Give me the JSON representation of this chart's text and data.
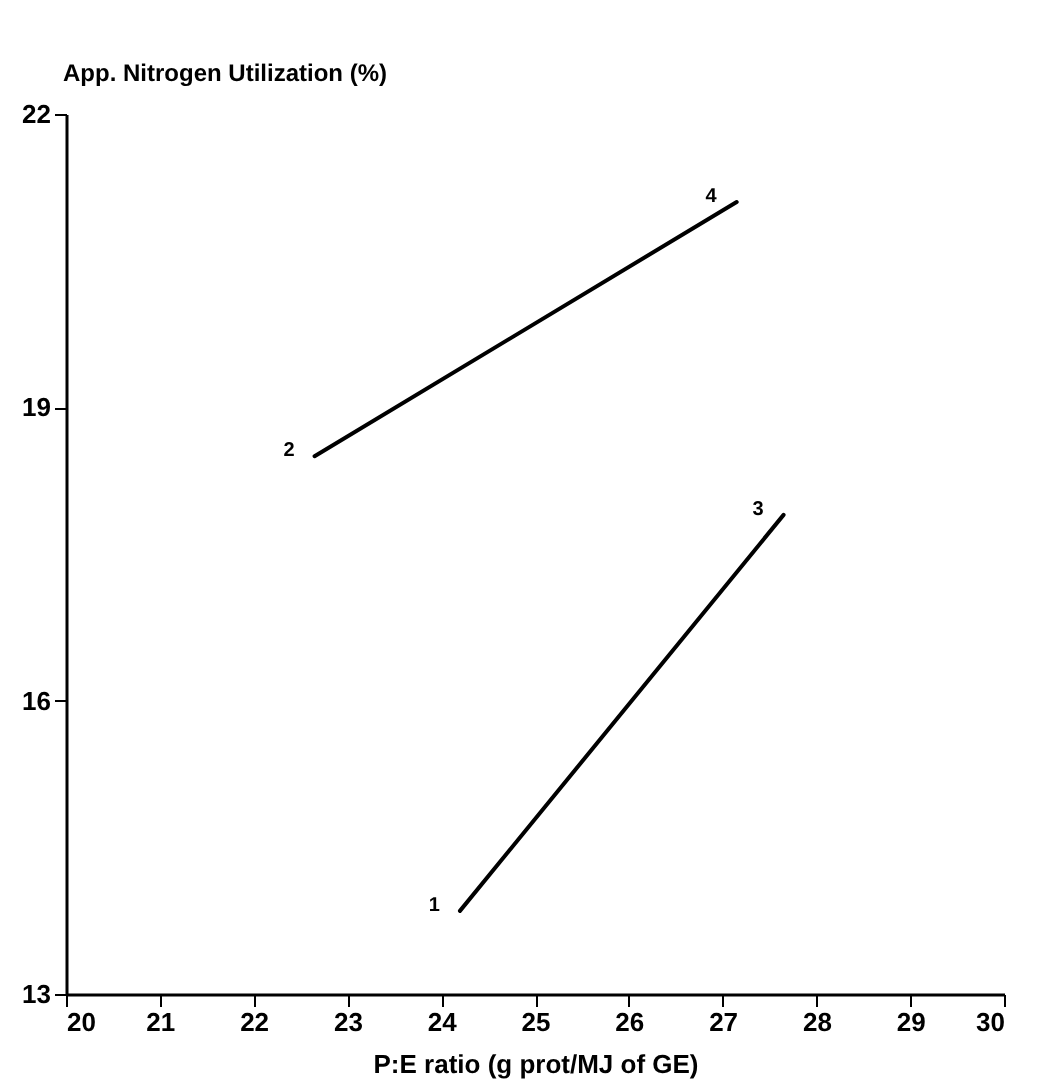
{
  "chart_data": {
    "type": "line",
    "ylabel": "App. Nitrogen Utilization (%)",
    "xlabel": "P:E ratio (g prot/MJ of GE)",
    "series": [
      {
        "color": "#000000",
        "x": [
          22.65,
          27.15
        ],
        "values": [
          18.5,
          21.1
        ]
      },
      {
        "color": "#000000",
        "x": [
          24.2,
          27.65
        ],
        "values": [
          13.85,
          17.9
        ]
      }
    ],
    "xlim": [
      20,
      30
    ],
    "xticks": [
      20,
      21,
      22,
      23,
      24,
      25,
      26,
      27,
      28,
      29,
      30
    ],
    "ylim": [
      13,
      22
    ],
    "yticks": [
      13,
      16,
      19,
      22
    ],
    "grid": false,
    "annotations": [
      {
        "text": "2",
        "x": 22.65,
        "y": 18.5
      },
      {
        "text": "4",
        "x": 27.15,
        "y": 21.1
      },
      {
        "text": "1",
        "x": 24.2,
        "y": 13.85
      },
      {
        "text": "3",
        "x": 27.65,
        "y": 17.9
      }
    ]
  }
}
